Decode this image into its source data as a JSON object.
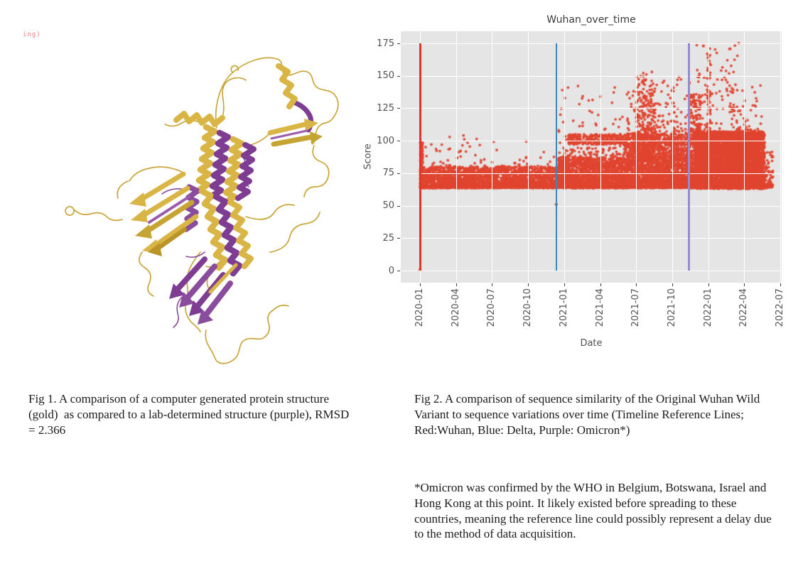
{
  "artifact_text": "ing)",
  "fig1": {
    "caption": "Fig 1. A comparison of a computer generated protein structure (gold)  as compared to a lab-determined structure (purple), RMSD = 2.366",
    "colors": {
      "gold": "#d8b545",
      "gold_dark": "#b99426",
      "purple": "#7e3d92"
    }
  },
  "fig2": {
    "caption": "Fig 2. A comparison of sequence similarity of the Original Wuhan Wild Variant to sequence variations over time (Timeline Reference Lines; Red:Wuhan, Blue: Delta, Purple: Omicron*)",
    "footnote": "*Omicron was confirmed by the WHO in Belgium, Botswana, Israel and Hong Kong at this point. It likely existed before spreading to these countries, meaning the reference line could possibly represent a delay due to the method of data acquisition."
  },
  "chart_data": {
    "type": "scatter",
    "title": "Wuhan_over_time",
    "xlabel": "Date",
    "ylabel": "Score",
    "point_color": "#e0442f",
    "panel_bg": "#e5e5e5",
    "grid_color": "#ffffff",
    "y_ticks": [
      0,
      25,
      50,
      75,
      100,
      125,
      150,
      175
    ],
    "ylim": [
      0,
      175
    ],
    "x_tick_labels": [
      "2020-01",
      "2020-04",
      "2020-07",
      "2020-10",
      "2021-01",
      "2021-04",
      "2021-07",
      "2021-10",
      "2022-01",
      "2022-04",
      "2022-07"
    ],
    "x_months_span": 30,
    "legend_position": "none",
    "grid": "major-white-on-gray",
    "reference_lines": [
      {
        "label": "Wuhan",
        "color": "#e13528",
        "month": 0,
        "approx_date": "2020-01",
        "width": 3
      },
      {
        "label": "Delta",
        "color": "#3e86b5",
        "month": 11.35,
        "approx_date": "2020-12",
        "width": 2.5
      },
      {
        "label": "Omicron",
        "color": "#958bd2",
        "month": 22.4,
        "approx_date": "2021-11",
        "width": 2.5
      }
    ],
    "distribution_clusters": [
      {
        "months": [
          0,
          11.5
        ],
        "score": [
          64,
          80
        ],
        "count": 2600,
        "bias": "bottom"
      },
      {
        "months": [
          0.02,
          0.25
        ],
        "score": [
          64,
          100
        ],
        "count": 140,
        "bias": "bottom"
      },
      {
        "months": [
          0.3,
          11.5
        ],
        "score": [
          80,
          105
        ],
        "count": 70,
        "bias": "bottom"
      },
      {
        "months": [
          11.5,
          17
        ],
        "score": [
          64,
          87
        ],
        "count": 1900,
        "bias": "bottom"
      },
      {
        "months": [
          11.5,
          17
        ],
        "score": [
          80,
          95
        ],
        "count": 150,
        "bias": "bottom"
      },
      {
        "months": [
          11.5,
          17
        ],
        "score": [
          87,
          143
        ],
        "count": 70,
        "bias": "bottom"
      },
      {
        "months": [
          17,
          23
        ],
        "score": [
          64,
          98
        ],
        "count": 2600,
        "bias": "bottom"
      },
      {
        "months": [
          12.3,
          23
        ],
        "score": [
          97,
          105
        ],
        "count": 650,
        "bias": "uniform"
      },
      {
        "months": [
          17.2,
          22.8
        ],
        "score": [
          105,
          150
        ],
        "count": 160,
        "bias": "bottom"
      },
      {
        "months": [
          18.0,
          19.6
        ],
        "score": [
          85,
          153
        ],
        "count": 300,
        "bias": "bottom"
      },
      {
        "months": [
          22.4,
          23.3
        ],
        "score": [
          100,
          136
        ],
        "count": 110,
        "bias": "uniform"
      },
      {
        "months": [
          22.9,
          28.7
        ],
        "score": [
          63,
          107
        ],
        "count": 5200,
        "bias": "uniform"
      },
      {
        "months": [
          23.0,
          26.6
        ],
        "score": [
          107,
          176
        ],
        "count": 120,
        "bias": "bottom"
      },
      {
        "months": [
          23.9,
          24.2
        ],
        "score": [
          100,
          172
        ],
        "count": 55,
        "bias": "uniform"
      },
      {
        "months": [
          26.6,
          28.6
        ],
        "score": [
          107,
          148
        ],
        "count": 35,
        "bias": "bottom"
      },
      {
        "months": [
          28.7,
          29.4
        ],
        "score": [
          64,
          92
        ],
        "count": 70,
        "bias": "bottom"
      },
      {
        "months": [
          0,
          29
        ],
        "score": [
          63.5,
          64.5
        ],
        "count": 900,
        "bias": "uniform"
      }
    ],
    "notable_points": [
      {
        "month": 0,
        "score": 0.5,
        "note": "single point at origin under red line"
      },
      {
        "month": 11.35,
        "score": 51,
        "note": "isolated point on Delta line"
      },
      {
        "month": 23.6,
        "score": 173,
        "note": "maximum outlier near 2022-01"
      }
    ]
  }
}
